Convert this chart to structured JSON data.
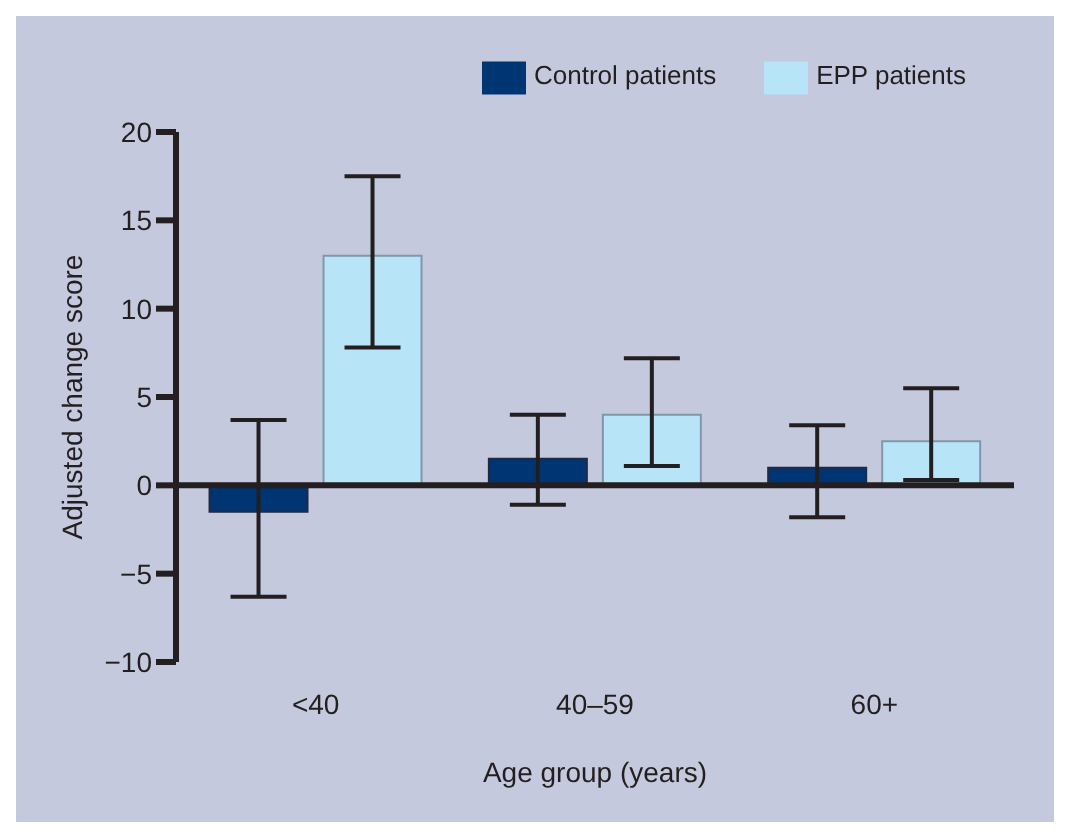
{
  "chart_data": {
    "type": "bar",
    "xlabel": "Age group (years)",
    "ylabel": "Adjusted change score",
    "categories": [
      "<40",
      "40–59",
      "60+"
    ],
    "series": [
      {
        "name": "Control patients",
        "color": "#003574",
        "values": [
          -1.5,
          1.5,
          1.0
        ],
        "errors": [
          [
            -6.3,
            3.7
          ],
          [
            -1.1,
            4.0
          ],
          [
            -1.8,
            3.4
          ]
        ]
      },
      {
        "name": "EPP patients",
        "color": "#b8e4f8",
        "values": [
          13.0,
          4.0,
          2.5
        ],
        "errors": [
          [
            7.8,
            17.5
          ],
          [
            1.1,
            7.2
          ],
          [
            0.3,
            5.5
          ]
        ]
      }
    ],
    "ylim": [
      -10,
      20
    ],
    "yticks": [
      -10,
      -5,
      0,
      5,
      10,
      15,
      20
    ],
    "ref_lines": [
      {
        "axis": "y",
        "value": 0,
        "color": "#231f20"
      }
    ],
    "legend": "top right"
  }
}
